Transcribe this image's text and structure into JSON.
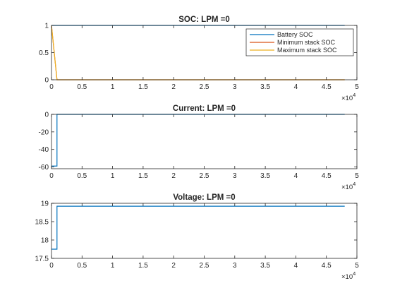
{
  "chart_data": [
    {
      "type": "line",
      "title": "SOC: LPM =0",
      "xlim": [
        0,
        50000
      ],
      "ylim": [
        0,
        1
      ],
      "x_ticks": [
        "0",
        "0.5",
        "1",
        "1.5",
        "2",
        "2.5",
        "3",
        "3.5",
        "4",
        "4.5",
        "5"
      ],
      "x_tick_values": [
        0,
        5000,
        10000,
        15000,
        20000,
        25000,
        30000,
        35000,
        40000,
        45000,
        50000
      ],
      "x_exponent": "4",
      "y_ticks": [
        "0",
        "0.5",
        "1"
      ],
      "y_tick_values": [
        0,
        0.5,
        1
      ],
      "grid": false,
      "legend_position": "top-right",
      "series": [
        {
          "name": "Battery SOC",
          "color": "#0072BD",
          "x": [
            0,
            48000
          ],
          "y": [
            1,
            1
          ]
        },
        {
          "name": "Minimum stack SOC",
          "color": "#D95319",
          "x": [
            0,
            900,
            48000
          ],
          "y": [
            1,
            0,
            0
          ]
        },
        {
          "name": "Maximum stack SOC",
          "color": "#EDB120",
          "x": [
            0,
            900,
            48000
          ],
          "y": [
            1,
            0,
            0
          ]
        }
      ]
    },
    {
      "type": "line",
      "title": "Current: LPM =0",
      "xlim": [
        0,
        50000
      ],
      "ylim": [
        -62,
        0
      ],
      "x_ticks": [
        "0",
        "0.5",
        "1",
        "1.5",
        "2",
        "2.5",
        "3",
        "3.5",
        "4",
        "4.5",
        "5"
      ],
      "x_tick_values": [
        0,
        5000,
        10000,
        15000,
        20000,
        25000,
        30000,
        35000,
        40000,
        45000,
        50000
      ],
      "x_exponent": "4",
      "y_ticks": [
        "-60",
        "-40",
        "-20",
        "0"
      ],
      "y_tick_values": [
        -60,
        -40,
        -20,
        0
      ],
      "grid": false,
      "series": [
        {
          "color": "#0072BD",
          "x": [
            0,
            900,
            900,
            48000
          ],
          "y": [
            -59,
            -59,
            0,
            0
          ]
        }
      ]
    },
    {
      "type": "line",
      "title": "Voltage: LPM =0",
      "xlim": [
        0,
        50000
      ],
      "ylim": [
        17.5,
        19
      ],
      "x_ticks": [
        "0",
        "0.5",
        "1",
        "1.5",
        "2",
        "2.5",
        "3",
        "3.5",
        "4",
        "4.5",
        "5"
      ],
      "x_tick_values": [
        0,
        5000,
        10000,
        15000,
        20000,
        25000,
        30000,
        35000,
        40000,
        45000,
        50000
      ],
      "x_exponent": "4",
      "y_ticks": [
        "17.5",
        "18",
        "18.5",
        "19"
      ],
      "y_tick_values": [
        17.5,
        18,
        18.5,
        19
      ],
      "grid": false,
      "series": [
        {
          "color": "#0072BD",
          "x": [
            0,
            900,
            900,
            48000
          ],
          "y": [
            17.75,
            17.75,
            18.92,
            18.92
          ]
        }
      ]
    }
  ]
}
